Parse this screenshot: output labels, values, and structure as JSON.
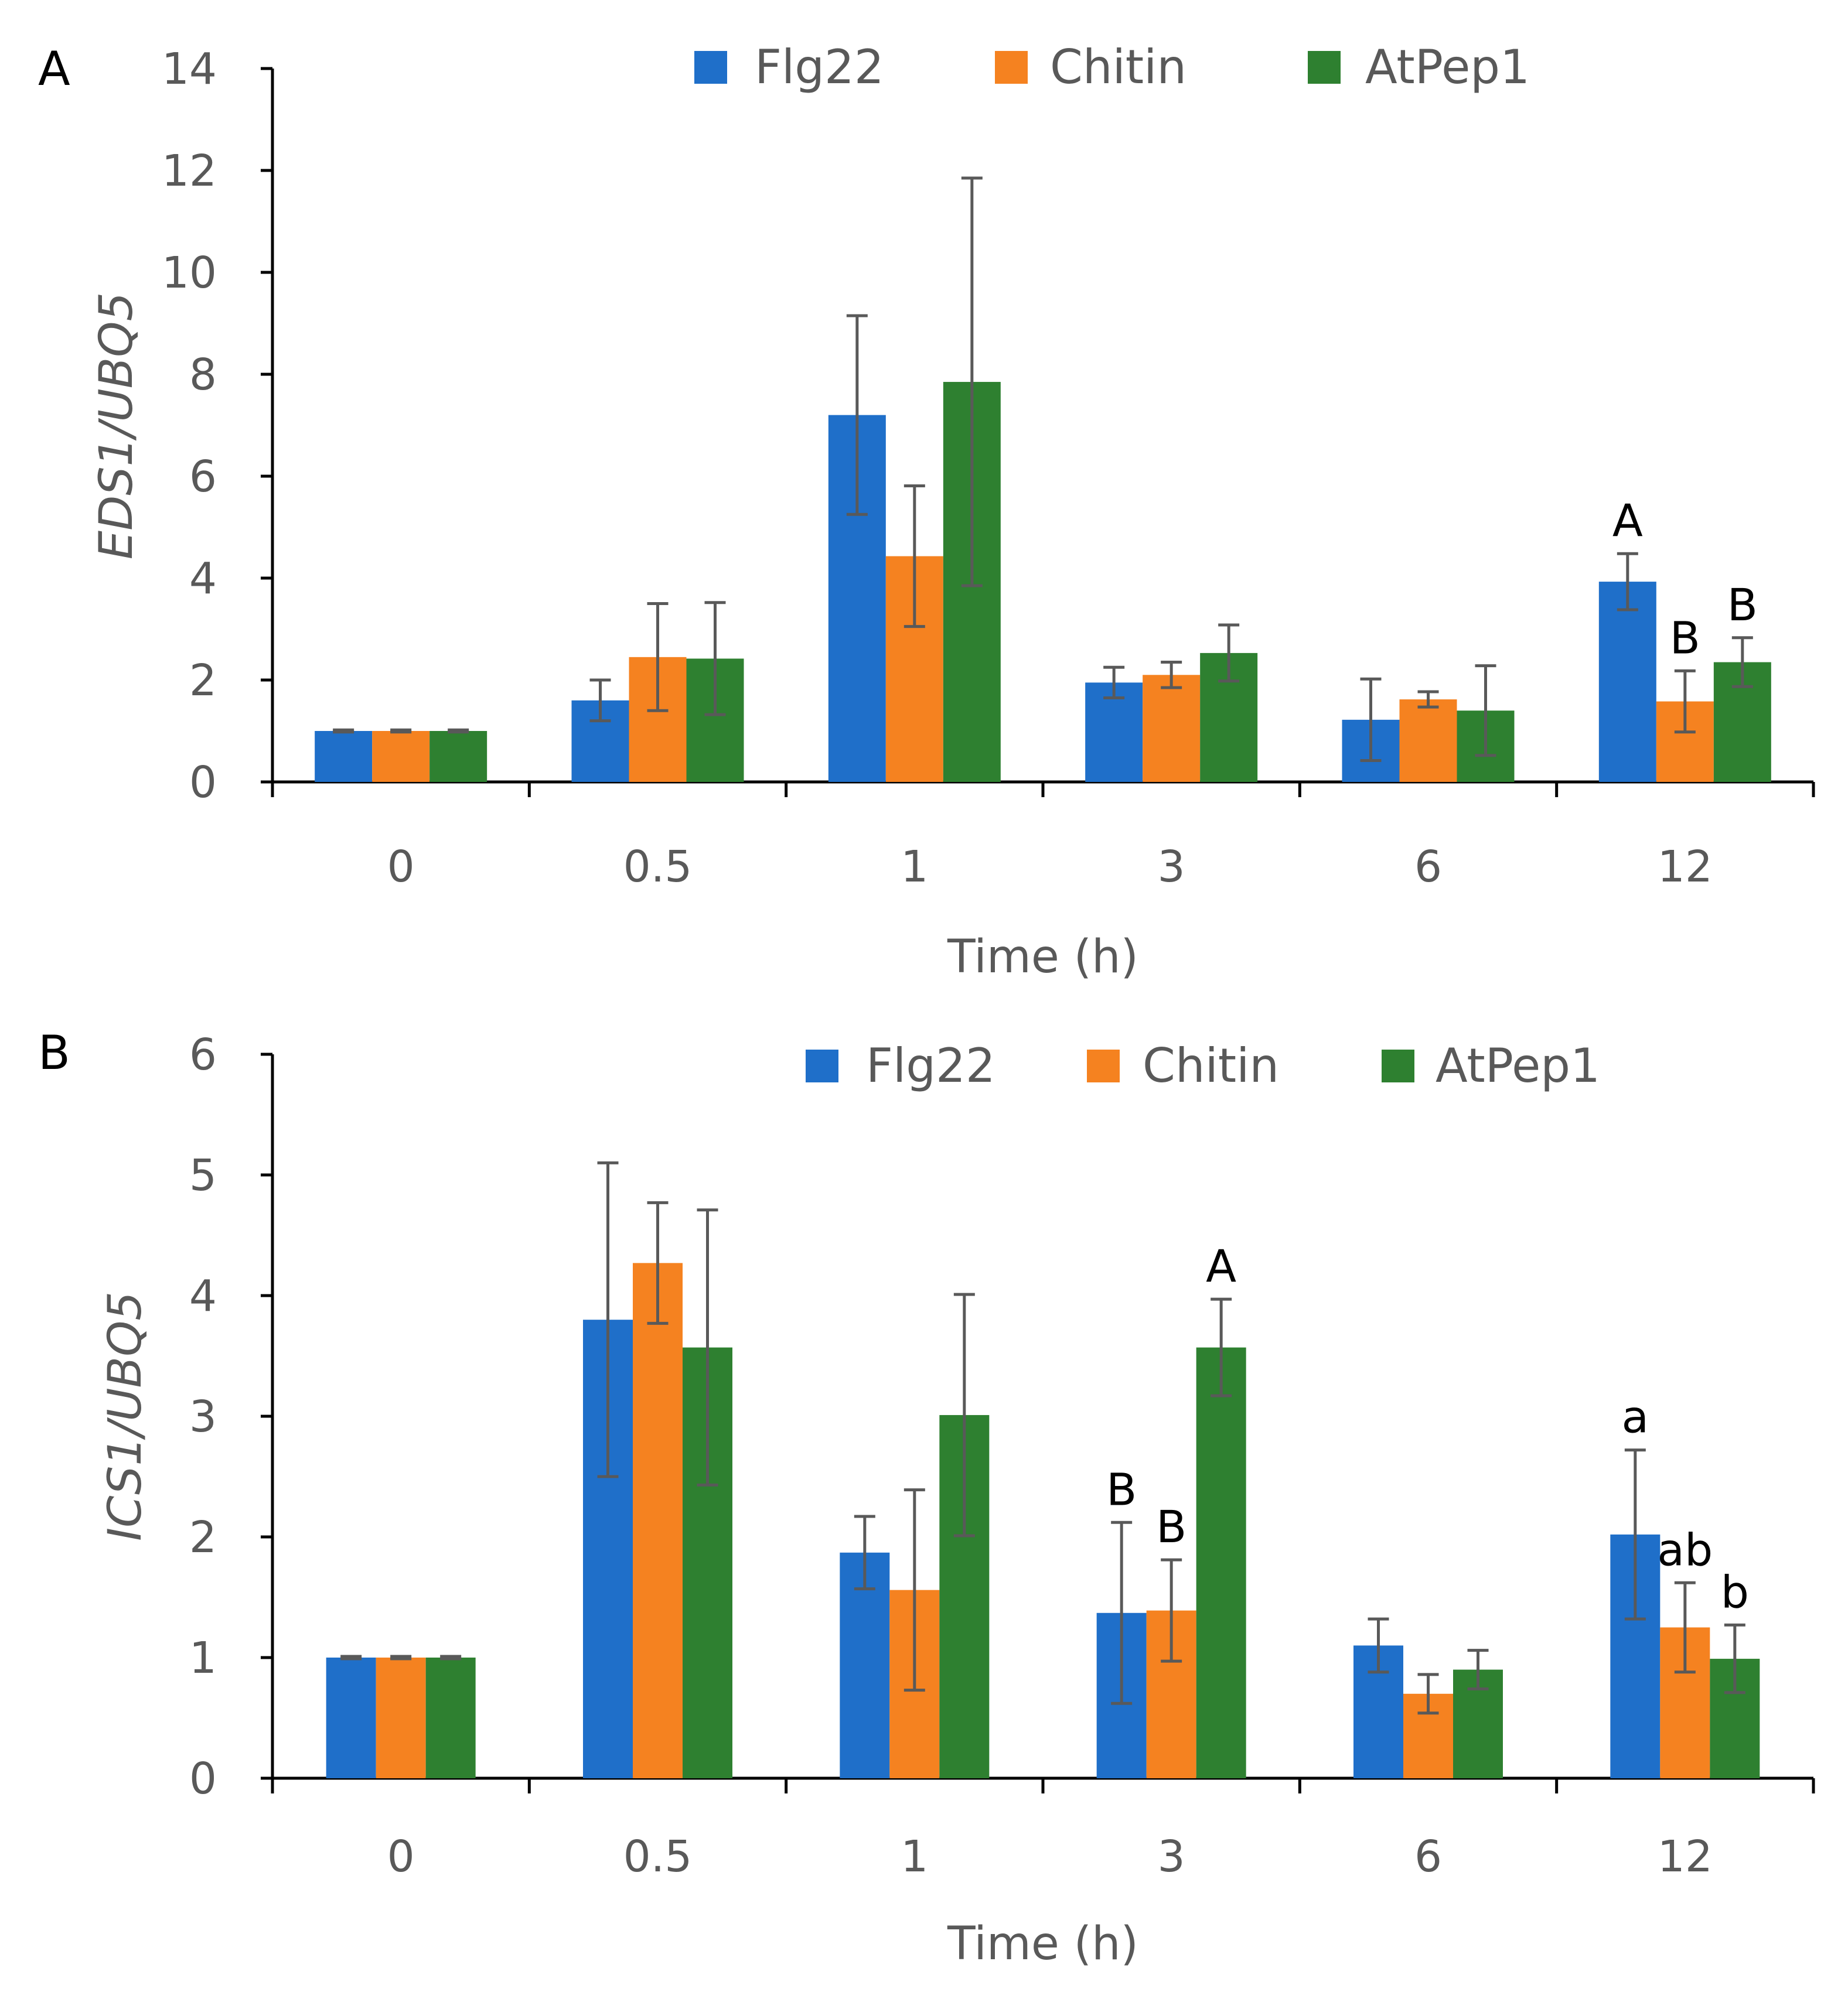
{
  "colors": {
    "Flg22": "#1f6fc9",
    "Chitin": "#f58220",
    "AtPep1": "#2e8030",
    "axis": "#000000",
    "error": "#595959"
  },
  "chart_data": [
    {
      "type": "bar",
      "panel": "A",
      "xlabel": "Time (h)",
      "ylabel": "EDS1/UBQ5",
      "ylim": [
        0,
        14
      ],
      "yticks": [
        "0",
        "2",
        "4",
        "6",
        "8",
        "10",
        "12",
        "14"
      ],
      "categories": [
        "0",
        "0.5",
        "1",
        "3",
        "6",
        "12"
      ],
      "legend_position": "top-center",
      "series": [
        {
          "name": "Flg22",
          "values": [
            1.0,
            1.6,
            7.2,
            1.95,
            1.22,
            3.93
          ],
          "errors": [
            0.02,
            0.4,
            1.95,
            0.3,
            0.8,
            0.55
          ]
        },
        {
          "name": "Chitin",
          "values": [
            1.0,
            2.45,
            4.43,
            2.1,
            1.62,
            1.58
          ],
          "errors": [
            0.02,
            1.05,
            1.38,
            0.25,
            0.15,
            0.6
          ]
        },
        {
          "name": "AtPep1",
          "values": [
            1.0,
            2.42,
            7.85,
            2.53,
            1.4,
            2.35
          ],
          "errors": [
            0.02,
            1.1,
            4.0,
            0.55,
            0.88,
            0.48
          ]
        }
      ],
      "annotations": [
        {
          "category": "12",
          "series": "Flg22",
          "label": "A"
        },
        {
          "category": "12",
          "series": "Chitin",
          "label": "B"
        },
        {
          "category": "12",
          "series": "AtPep1",
          "label": "B"
        }
      ]
    },
    {
      "type": "bar",
      "panel": "B",
      "xlabel": "Time (h)",
      "ylabel": "ICS1/UBQ5",
      "ylim": [
        0,
        6
      ],
      "yticks": [
        "0",
        "1",
        "2",
        "3",
        "4",
        "5",
        "6"
      ],
      "categories": [
        "0",
        "0.5",
        "1",
        "3",
        "6",
        "12"
      ],
      "legend_position": "top-center",
      "series": [
        {
          "name": "Flg22",
          "values": [
            1.0,
            3.8,
            1.87,
            1.37,
            1.1,
            2.02
          ],
          "errors": [
            0.01,
            1.3,
            0.3,
            0.75,
            0.22,
            0.7
          ]
        },
        {
          "name": "Chitin",
          "values": [
            1.0,
            4.27,
            1.56,
            1.39,
            0.7,
            1.25
          ],
          "errors": [
            0.01,
            0.5,
            0.83,
            0.42,
            0.16,
            0.37
          ]
        },
        {
          "name": "AtPep1",
          "values": [
            1.0,
            3.57,
            3.01,
            3.57,
            0.9,
            0.99
          ],
          "errors": [
            0.01,
            1.14,
            1.0,
            0.4,
            0.16,
            0.28
          ]
        }
      ],
      "annotations": [
        {
          "category": "3",
          "series": "Flg22",
          "label": "B"
        },
        {
          "category": "3",
          "series": "Chitin",
          "label": "B"
        },
        {
          "category": "3",
          "series": "AtPep1",
          "label": "A"
        },
        {
          "category": "12",
          "series": "Flg22",
          "label": "a"
        },
        {
          "category": "12",
          "series": "Chitin",
          "label": "ab"
        },
        {
          "category": "12",
          "series": "AtPep1",
          "label": "b"
        }
      ]
    }
  ]
}
